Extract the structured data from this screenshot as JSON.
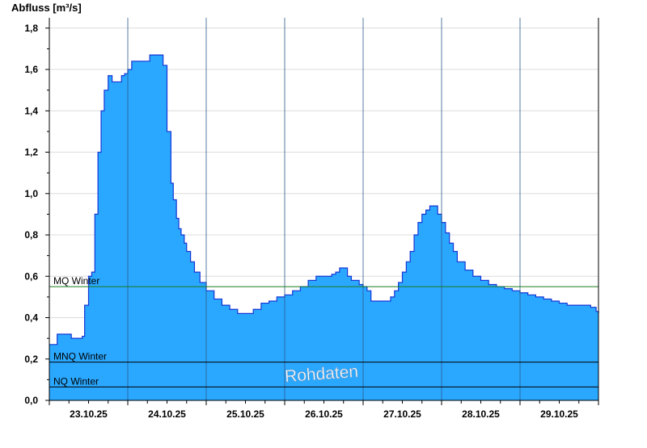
{
  "chart_data": {
    "type": "area",
    "ylabel": "Abfluss [m³/s]",
    "ylim": [
      0,
      1.85
    ],
    "yticks": [
      "0,0",
      "0,2",
      "0,4",
      "0,6",
      "0,8",
      "1,0",
      "1,2",
      "1,4",
      "1,6",
      "1,8"
    ],
    "x_range_days": [
      22.5,
      29.5
    ],
    "xticks": [
      {
        "label": "23.10.25",
        "day": 23.0
      },
      {
        "label": "24.10.25",
        "day": 24.0
      },
      {
        "label": "25.10.25",
        "day": 25.0
      },
      {
        "label": "26.10.25",
        "day": 26.0
      },
      {
        "label": "27.10.25",
        "day": 27.0
      },
      {
        "label": "28.10.25",
        "day": 28.0
      },
      {
        "label": "29.10.25",
        "day": 29.0
      }
    ],
    "series": [
      {
        "color": "#2aa8ff",
        "x": [
          22.5,
          22.56,
          22.6,
          22.7,
          22.78,
          22.92,
          22.95,
          23.0,
          23.04,
          23.08,
          23.12,
          23.16,
          23.2,
          23.25,
          23.3,
          23.35,
          23.42,
          23.46,
          23.5,
          23.55,
          23.6,
          23.68,
          23.78,
          23.88,
          23.95,
          24.0,
          24.05,
          24.08,
          24.12,
          24.15,
          24.18,
          24.22,
          24.25,
          24.3,
          24.35,
          24.42,
          24.5,
          24.6,
          24.7,
          24.8,
          24.9,
          25.0,
          25.1,
          25.2,
          25.3,
          25.4,
          25.5,
          25.6,
          25.7,
          25.8,
          25.9,
          26.0,
          26.1,
          26.15,
          26.2,
          26.3,
          26.35,
          26.45,
          26.5,
          26.55,
          26.6,
          26.7,
          26.8,
          26.85,
          26.9,
          26.95,
          27.0,
          27.05,
          27.1,
          27.15,
          27.2,
          27.25,
          27.3,
          27.35,
          27.4,
          27.45,
          27.5,
          27.55,
          27.6,
          27.65,
          27.7,
          27.8,
          27.9,
          28.0,
          28.1,
          28.2,
          28.3,
          28.4,
          28.5,
          28.6,
          28.7,
          28.8,
          28.9,
          29.0,
          29.1,
          29.2,
          29.3,
          29.4,
          29.47,
          29.5
        ],
        "y": [
          0.27,
          0.27,
          0.32,
          0.32,
          0.3,
          0.31,
          0.46,
          0.6,
          0.62,
          0.9,
          1.2,
          1.4,
          1.5,
          1.57,
          1.54,
          1.54,
          1.57,
          1.58,
          1.6,
          1.64,
          1.64,
          1.64,
          1.67,
          1.67,
          1.62,
          1.3,
          1.05,
          0.97,
          0.88,
          0.83,
          0.8,
          0.76,
          0.72,
          0.67,
          0.62,
          0.57,
          0.53,
          0.49,
          0.46,
          0.44,
          0.42,
          0.42,
          0.44,
          0.47,
          0.48,
          0.5,
          0.51,
          0.53,
          0.55,
          0.58,
          0.6,
          0.6,
          0.61,
          0.62,
          0.64,
          0.6,
          0.58,
          0.56,
          0.55,
          0.53,
          0.48,
          0.48,
          0.48,
          0.5,
          0.53,
          0.57,
          0.62,
          0.67,
          0.72,
          0.8,
          0.86,
          0.9,
          0.92,
          0.94,
          0.94,
          0.9,
          0.86,
          0.81,
          0.76,
          0.72,
          0.67,
          0.63,
          0.6,
          0.58,
          0.56,
          0.55,
          0.54,
          0.53,
          0.52,
          0.51,
          0.5,
          0.49,
          0.48,
          0.47,
          0.46,
          0.46,
          0.46,
          0.45,
          0.43,
          0.42
        ]
      }
    ],
    "reference_lines": [
      {
        "label": "MQ Winter",
        "value": 0.55,
        "color": "#1a7a1a"
      },
      {
        "label": "MNQ Winter",
        "value": 0.185,
        "color": "#000000"
      },
      {
        "label": "NQ Winter",
        "value": 0.065,
        "color": "#000000"
      }
    ],
    "annotation": "Rohdaten",
    "grid": true,
    "legend": "none"
  }
}
